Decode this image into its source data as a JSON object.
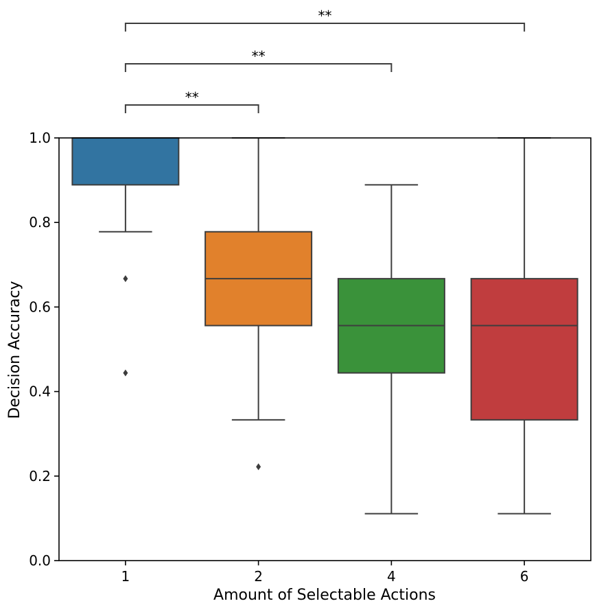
{
  "chart_data": {
    "type": "box",
    "xlabel": "Amount of Selectable Actions",
    "ylabel": "Decision Accuracy",
    "ylim": [
      0.0,
      1.0
    ],
    "yticks": [
      0.0,
      0.2,
      0.4,
      0.6,
      0.8,
      1.0
    ],
    "ytick_labels": [
      "0.0",
      "0.2",
      "0.4",
      "0.6",
      "0.8",
      "1.0"
    ],
    "categories": [
      "1",
      "2",
      "4",
      "6"
    ],
    "boxes": [
      {
        "category": "1",
        "whisker_low": 0.778,
        "q1": 0.889,
        "median": 1.0,
        "q3": 1.0,
        "whisker_high": 1.0,
        "outliers": [
          0.667,
          0.444
        ],
        "color": "#3274a1"
      },
      {
        "category": "2",
        "whisker_low": 0.333,
        "q1": 0.556,
        "median": 0.667,
        "q3": 0.778,
        "whisker_high": 1.0,
        "outliers": [
          0.222
        ],
        "color": "#e1812c"
      },
      {
        "category": "4",
        "whisker_low": 0.111,
        "q1": 0.444,
        "median": 0.556,
        "q3": 0.667,
        "whisker_high": 0.889,
        "outliers": [],
        "color": "#3a923a"
      },
      {
        "category": "6",
        "whisker_low": 0.111,
        "q1": 0.333,
        "median": 0.556,
        "q3": 0.667,
        "whisker_high": 1.0,
        "outliers": [],
        "color": "#c03d3e"
      }
    ],
    "significance": [
      {
        "from": "1",
        "to": "2",
        "label": "**"
      },
      {
        "from": "1",
        "to": "4",
        "label": "**"
      },
      {
        "from": "1",
        "to": "6",
        "label": "**"
      }
    ]
  }
}
